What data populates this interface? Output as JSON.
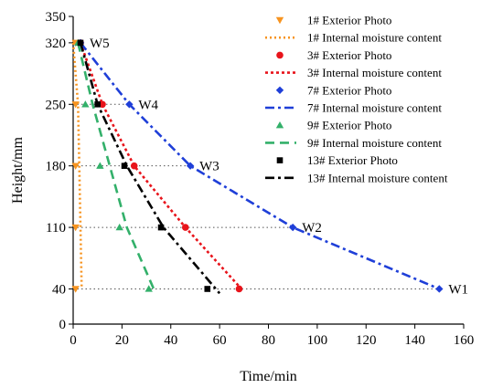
{
  "chart_data": {
    "type": "scatter",
    "xlabel": "Time/min",
    "ylabel": "Height/mm",
    "xlim": [
      0,
      160
    ],
    "ylim": [
      0,
      350
    ],
    "xticks": [
      0,
      20,
      40,
      60,
      80,
      100,
      120,
      140,
      160
    ],
    "yticks": [
      0,
      40,
      110,
      180,
      250,
      320,
      350
    ],
    "grid": false,
    "legend_position": "top-right",
    "reference_lines": [
      {
        "y": 40,
        "x_to": 150
      },
      {
        "y": 110,
        "x_to": 90
      },
      {
        "y": 180,
        "x_to": 48
      },
      {
        "y": 250,
        "x_to": 24
      }
    ],
    "annotations": [
      {
        "text": "W5",
        "x": 3,
        "y": 320
      },
      {
        "text": "W4",
        "x": 23,
        "y": 250
      },
      {
        "text": "W3",
        "x": 48,
        "y": 180
      },
      {
        "text": "W2",
        "x": 90,
        "y": 110
      },
      {
        "text": "W1",
        "x": 150,
        "y": 40
      }
    ],
    "series": [
      {
        "name": "1# Exterior Photo",
        "kind": "points",
        "marker": "triangle-down",
        "color": "#F79420",
        "points": [
          [
            1,
            320
          ],
          [
            1,
            250
          ],
          [
            1,
            180
          ],
          [
            1,
            110
          ],
          [
            1,
            40
          ]
        ]
      },
      {
        "name": "1# Internal  moisture content",
        "kind": "line",
        "dash": "dot",
        "color": "#F79420",
        "points": [
          [
            0,
            320
          ],
          [
            2,
            250
          ],
          [
            2.5,
            180
          ],
          [
            3,
            110
          ],
          [
            3.5,
            40
          ]
        ]
      },
      {
        "name": "3# Exterior Photo",
        "kind": "points",
        "marker": "circle",
        "color": "#E8141B",
        "points": [
          [
            3,
            320
          ],
          [
            12,
            250
          ],
          [
            25,
            180
          ],
          [
            46,
            110
          ],
          [
            68,
            40
          ]
        ]
      },
      {
        "name": "3# Internal  moisture content",
        "kind": "line",
        "dash": "short-dot",
        "color": "#E8141B",
        "points": [
          [
            3,
            320
          ],
          [
            12,
            250
          ],
          [
            25,
            180
          ],
          [
            46,
            110
          ],
          [
            69,
            40
          ]
        ]
      },
      {
        "name": "7# Exterior Photo",
        "kind": "points",
        "marker": "diamond",
        "color": "#1F3FD8",
        "points": [
          [
            3,
            320
          ],
          [
            23,
            250
          ],
          [
            48,
            180
          ],
          [
            90,
            110
          ],
          [
            150,
            40
          ]
        ]
      },
      {
        "name": "7# Internal moisture content",
        "kind": "line",
        "dash": "dash-dot",
        "color": "#1F3FD8",
        "points": [
          [
            3,
            320
          ],
          [
            23,
            250
          ],
          [
            48,
            180
          ],
          [
            90,
            110
          ],
          [
            150,
            40
          ]
        ]
      },
      {
        "name": "9# Exterior Photo",
        "kind": "points",
        "marker": "triangle-up",
        "color": "#33B06A",
        "points": [
          [
            2,
            320
          ],
          [
            5,
            250
          ],
          [
            11,
            180
          ],
          [
            19,
            110
          ],
          [
            31,
            40
          ]
        ]
      },
      {
        "name": "9# Internal moisture content",
        "kind": "line",
        "dash": "long-dash",
        "color": "#33B06A",
        "points": [
          [
            2,
            320
          ],
          [
            8,
            250
          ],
          [
            15,
            180
          ],
          [
            22,
            110
          ],
          [
            33,
            40
          ]
        ]
      },
      {
        "name": "13# Exterior Photo",
        "kind": "points",
        "marker": "square",
        "color": "#000000",
        "points": [
          [
            3,
            320
          ],
          [
            10,
            250
          ],
          [
            21,
            180
          ],
          [
            36,
            110
          ],
          [
            55,
            40
          ]
        ]
      },
      {
        "name": "13# Internal moisture content",
        "kind": "line",
        "dash": "dash-dot",
        "color": "#000000",
        "points": [
          [
            3,
            320
          ],
          [
            10,
            250
          ],
          [
            22,
            180
          ],
          [
            37,
            110
          ],
          [
            60,
            35
          ]
        ]
      }
    ]
  }
}
